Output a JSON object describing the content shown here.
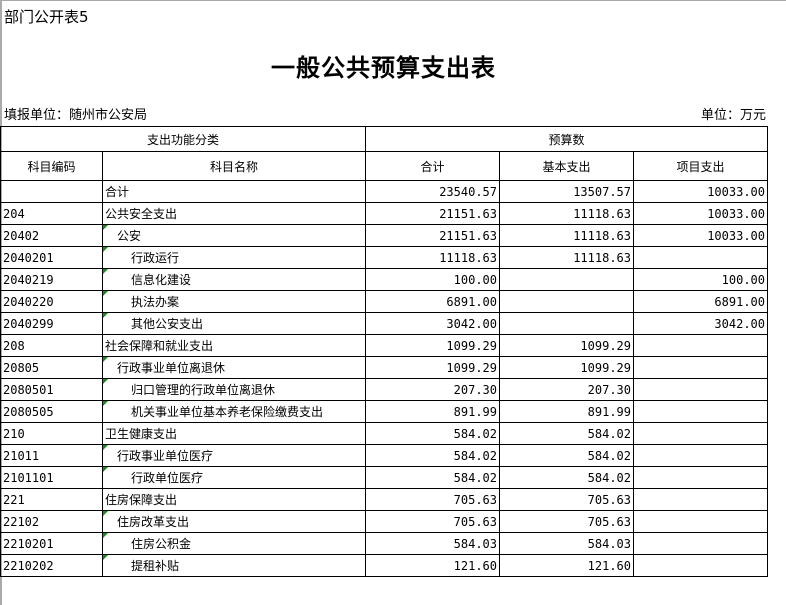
{
  "sheet_tag": "部门公开表5",
  "title": "一般公共预算支出表",
  "filler_unit": "填报单位：随州市公安局",
  "money_unit": "单位：万元",
  "headers": {
    "group_function": "支出功能分类",
    "group_budget": "预算数",
    "code": "科目编码",
    "name": "科目名称",
    "total": "合计",
    "basic": "基本支出",
    "project": "项目支出"
  },
  "rows": [
    {
      "code": "",
      "name": "合计",
      "level": 0,
      "total": "23540.57",
      "basic": "13507.57",
      "project": "10033.00"
    },
    {
      "code": "204",
      "name": "公共安全支出",
      "level": 0,
      "total": "21151.63",
      "basic": "11118.63",
      "project": "10033.00"
    },
    {
      "code": "20402",
      "name": "公安",
      "level": 1,
      "total": "21151.63",
      "basic": "11118.63",
      "project": "10033.00"
    },
    {
      "code": "2040201",
      "name": "行政运行",
      "level": 2,
      "total": "11118.63",
      "basic": "11118.63",
      "project": ""
    },
    {
      "code": "2040219",
      "name": "信息化建设",
      "level": 2,
      "total": "100.00",
      "basic": "",
      "project": "100.00"
    },
    {
      "code": "2040220",
      "name": "执法办案",
      "level": 2,
      "total": "6891.00",
      "basic": "",
      "project": "6891.00"
    },
    {
      "code": "2040299",
      "name": "其他公安支出",
      "level": 2,
      "total": "3042.00",
      "basic": "",
      "project": "3042.00"
    },
    {
      "code": "208",
      "name": "社会保障和就业支出",
      "level": 0,
      "total": "1099.29",
      "basic": "1099.29",
      "project": ""
    },
    {
      "code": "20805",
      "name": "行政事业单位离退休",
      "level": 1,
      "total": "1099.29",
      "basic": "1099.29",
      "project": ""
    },
    {
      "code": "2080501",
      "name": "归口管理的行政单位离退休",
      "level": 2,
      "total": "207.30",
      "basic": "207.30",
      "project": ""
    },
    {
      "code": "2080505",
      "name": "机关事业单位基本养老保险缴费支出",
      "level": 2,
      "total": "891.99",
      "basic": "891.99",
      "project": ""
    },
    {
      "code": "210",
      "name": "卫生健康支出",
      "level": 0,
      "total": "584.02",
      "basic": "584.02",
      "project": ""
    },
    {
      "code": "21011",
      "name": "行政事业单位医疗",
      "level": 1,
      "total": "584.02",
      "basic": "584.02",
      "project": ""
    },
    {
      "code": "2101101",
      "name": "行政单位医疗",
      "level": 2,
      "total": "584.02",
      "basic": "584.02",
      "project": ""
    },
    {
      "code": "221",
      "name": "住房保障支出",
      "level": 0,
      "total": "705.63",
      "basic": "705.63",
      "project": ""
    },
    {
      "code": "22102",
      "name": "住房改革支出",
      "level": 1,
      "total": "705.63",
      "basic": "705.63",
      "project": ""
    },
    {
      "code": "2210201",
      "name": "住房公积金",
      "level": 2,
      "total": "584.03",
      "basic": "584.03",
      "project": ""
    },
    {
      "code": "2210202",
      "name": "提租补贴",
      "level": 2,
      "total": "121.60",
      "basic": "121.60",
      "project": ""
    }
  ],
  "colors": {
    "cell_marker": "#1a8a1a",
    "grid": "#000000"
  }
}
